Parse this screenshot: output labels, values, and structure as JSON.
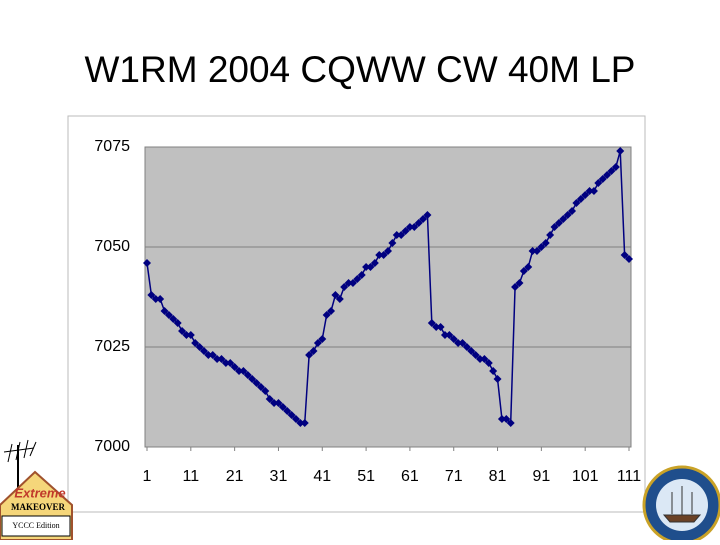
{
  "chart_data": {
    "type": "line",
    "title": "W1RM 2004 CQWW CW 40M LP",
    "x": [
      1,
      2,
      3,
      4,
      5,
      6,
      7,
      8,
      9,
      10,
      11,
      12,
      13,
      14,
      15,
      16,
      17,
      18,
      19,
      20,
      21,
      22,
      23,
      24,
      25,
      26,
      27,
      28,
      29,
      30,
      31,
      32,
      33,
      34,
      35,
      36,
      37,
      38,
      39,
      40,
      41,
      42,
      43,
      44,
      45,
      46,
      47,
      48,
      49,
      50,
      51,
      52,
      53,
      54,
      55,
      56,
      57,
      58,
      59,
      60,
      61,
      62,
      63,
      64,
      65,
      66,
      67,
      68,
      69,
      70,
      71,
      72,
      73,
      74,
      75,
      76,
      77,
      78,
      79,
      80,
      81,
      82,
      83,
      84,
      85,
      86,
      87,
      88,
      89,
      90,
      91,
      92,
      93,
      94,
      95,
      96,
      97,
      98,
      99,
      100,
      101,
      102,
      103,
      104,
      105,
      106,
      107,
      108,
      109,
      110,
      111
    ],
    "values": [
      7046,
      7038,
      7037,
      7037,
      7034,
      7033,
      7032,
      7031,
      7029,
      7028,
      7028,
      7026,
      7025,
      7024,
      7023,
      7023,
      7022,
      7022,
      7021,
      7021,
      7020,
      7019,
      7019,
      7018,
      7017,
      7016,
      7015,
      7014,
      7012,
      7011,
      7011,
      7010,
      7009,
      7008,
      7007,
      7006,
      7006,
      7023,
      7024,
      7026,
      7027,
      7033,
      7034,
      7038,
      7037,
      7040,
      7041,
      7041,
      7042,
      7043,
      7045,
      7045,
      7046,
      7048,
      7048,
      7049,
      7051,
      7053,
      7053,
      7054,
      7055,
      7055,
      7056,
      7057,
      7058,
      7031,
      7030,
      7030,
      7028,
      7028,
      7027,
      7026,
      7026,
      7025,
      7024,
      7023,
      7022,
      7022,
      7021,
      7019,
      7017,
      7007,
      7007,
      7006,
      7040,
      7041,
      7044,
      7045,
      7049,
      7049,
      7050,
      7051,
      7053,
      7055,
      7056,
      7057,
      7058,
      7059,
      7061,
      7062,
      7063,
      7064,
      7064,
      7066,
      7067,
      7068,
      7069,
      7070,
      7074,
      7048,
      7047
    ],
    "color": "#000080",
    "plot_background": "#c0c0c0",
    "grid": true,
    "xlim": [
      1,
      111
    ],
    "xticks": [
      1,
      11,
      21,
      31,
      41,
      51,
      61,
      71,
      81,
      91,
      101,
      111
    ],
    "ylim": [
      7000,
      7075
    ],
    "yticks": [
      7000,
      7025,
      7050,
      7075
    ]
  },
  "badge": {
    "title": "Extreme",
    "subtitle": "MAKEOVER",
    "edition": "YCCC Edition"
  }
}
